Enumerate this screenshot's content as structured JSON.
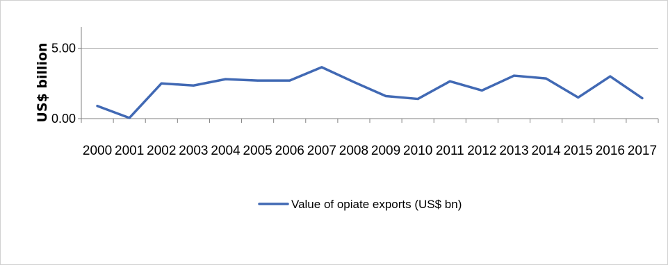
{
  "chart_data": {
    "type": "line",
    "title": "",
    "xlabel": "",
    "ylabel": "US$ billion",
    "ylim": [
      0,
      6.5
    ],
    "y_ticks": [
      {
        "value": 0,
        "label": "0.00"
      },
      {
        "value": 5,
        "label": "5.00"
      }
    ],
    "grid": "horizontal",
    "legend_position": "bottom",
    "categories": [
      "2000",
      "2001",
      "2002",
      "2003",
      "2004",
      "2005",
      "2006",
      "2007",
      "2008",
      "2009",
      "2010",
      "2011",
      "2012",
      "2013",
      "2014",
      "2015",
      "2016",
      "2017"
    ],
    "series": [
      {
        "name": "Value of opiate exports (US$ bn)",
        "color": "#4169b4",
        "values": [
          0.9,
          0.05,
          2.5,
          2.35,
          2.8,
          2.7,
          2.7,
          3.65,
          2.6,
          1.6,
          1.4,
          2.65,
          2.0,
          3.05,
          2.85,
          1.5,
          3.0,
          1.45
        ]
      }
    ]
  }
}
